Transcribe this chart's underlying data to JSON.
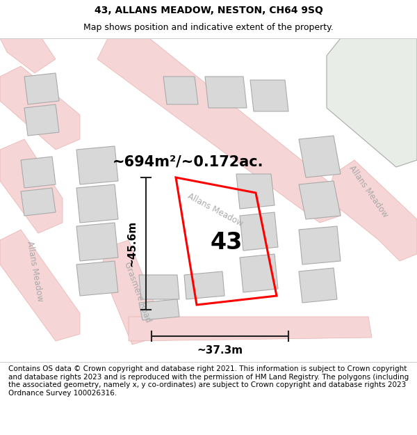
{
  "title": "43, ALLANS MEADOW, NESTON, CH64 9SQ",
  "subtitle": "Map shows position and indicative extent of the property.",
  "footer": "Contains OS data © Crown copyright and database right 2021. This information is subject to Crown copyright and database rights 2023 and is reproduced with the permission of HM Land Registry. The polygons (including the associated geometry, namely x, y co-ordinates) are subject to Crown copyright and database rights 2023 Ordnance Survey 100026316.",
  "area_text": "~694m²/~0.172ac.",
  "width_text": "~37.3m",
  "height_text": "~45.6m",
  "number_text": "43",
  "background_color": "#ffffff",
  "map_bg_color": "#f7f7f7",
  "road_fill_color": "#f5d5d5",
  "road_edge_color": "#e8b0b0",
  "building_color": "#d8d8d8",
  "building_outline_color": "#aaaaaa",
  "property_color": "#ff0000",
  "street_label_color": "#aaaaaa",
  "dim_line_color": "#222222",
  "title_fontsize": 10,
  "subtitle_fontsize": 9,
  "footer_fontsize": 7.5,
  "area_fontsize": 15,
  "number_fontsize": 24,
  "dim_fontsize": 11,
  "street_fontsize": 8.5
}
